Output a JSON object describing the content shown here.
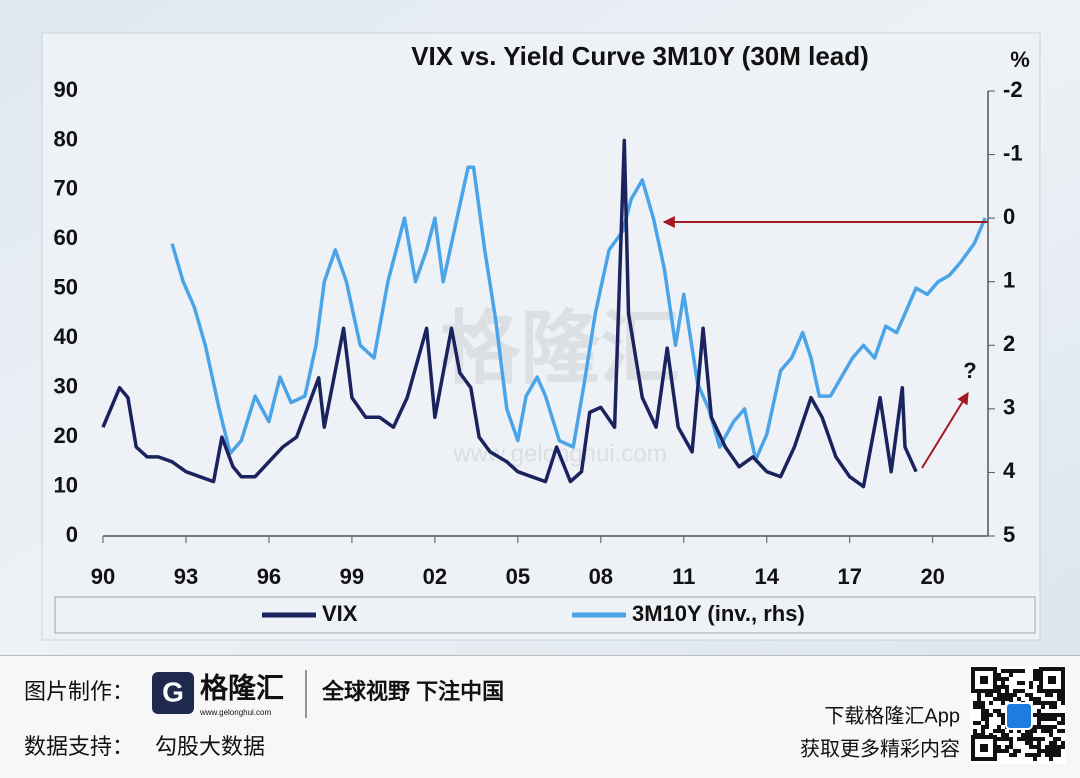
{
  "chart_data": {
    "type": "line",
    "title": "VIX vs. Yield Curve 3M10Y (30M lead)",
    "y2_label": "%",
    "xlim": [
      1990,
      2022
    ],
    "xticks": [
      {
        "value": 1990,
        "label": "90"
      },
      {
        "value": 1993,
        "label": "93"
      },
      {
        "value": 1996,
        "label": "96"
      },
      {
        "value": 1999,
        "label": "99"
      },
      {
        "value": 2002,
        "label": "02"
      },
      {
        "value": 2005,
        "label": "05"
      },
      {
        "value": 2008,
        "label": "08"
      },
      {
        "value": 2011,
        "label": "11"
      },
      {
        "value": 2014,
        "label": "14"
      },
      {
        "value": 2017,
        "label": "17"
      },
      {
        "value": 2020,
        "label": "20"
      }
    ],
    "ylim": [
      0,
      90
    ],
    "yticks": [
      0,
      10,
      20,
      30,
      40,
      50,
      60,
      70,
      80,
      90
    ],
    "y2lim": [
      5,
      -2
    ],
    "y2ticks": [
      5,
      4,
      3,
      2,
      1,
      0,
      -1,
      -2
    ],
    "annotations": [
      "?"
    ],
    "legend": "bottom",
    "series": [
      {
        "name": "VIX",
        "color": "#1b235e",
        "x": [
          1990.0,
          1990.6,
          1990.9,
          1991.2,
          1991.6,
          1992.0,
          1992.5,
          1993.0,
          1993.5,
          1994.0,
          1994.3,
          1994.7,
          1995.0,
          1995.5,
          1996.0,
          1996.5,
          1997.0,
          1997.8,
          1998.0,
          1998.7,
          1999.0,
          1999.5,
          2000.0,
          2000.5,
          2001.0,
          2001.7,
          2002.0,
          2002.6,
          2002.9,
          2003.3,
          2003.6,
          2004.0,
          2004.6,
          2005.0,
          2005.5,
          2006.0,
          2006.4,
          2006.9,
          2007.3,
          2007.6,
          2008.0,
          2008.5,
          2008.85,
          2009.0,
          2009.5,
          2010.0,
          2010.4,
          2010.8,
          2011.3,
          2011.7,
          2012.0,
          2012.5,
          2013.0,
          2013.5,
          2014.0,
          2014.5,
          2015.0,
          2015.6,
          2016.0,
          2016.5,
          2017.0,
          2017.5,
          2018.1,
          2018.5,
          2018.9,
          2019.0,
          2019.4
        ],
        "values": [
          22,
          30,
          28,
          18,
          16,
          16,
          15,
          13,
          12,
          11,
          20,
          14,
          12,
          12,
          15,
          18,
          20,
          32,
          22,
          42,
          28,
          24,
          24,
          22,
          28,
          42,
          24,
          42,
          33,
          30,
          20,
          17,
          15,
          13,
          12,
          11,
          18,
          11,
          13,
          25,
          26,
          22,
          80,
          45,
          28,
          22,
          38,
          22,
          17,
          42,
          24,
          18,
          14,
          16,
          13,
          12,
          18,
          28,
          24,
          16,
          12,
          10,
          28,
          13,
          30,
          18,
          13
        ]
      },
      {
        "name": "3M10Y (inv., rhs)",
        "color": "#4ba4e8",
        "axis": "y2",
        "x": [
          1992.5,
          1992.9,
          1993.3,
          1993.7,
          1994.2,
          1994.6,
          1995.0,
          1995.5,
          1996.0,
          1996.4,
          1996.8,
          1997.3,
          1997.7,
          1998.0,
          1998.4,
          1998.8,
          1999.3,
          1999.8,
          2000.3,
          2000.6,
          2000.9,
          2001.3,
          2001.7,
          2002.0,
          2002.3,
          2002.8,
          2003.2,
          2003.4,
          2003.8,
          2004.2,
          2004.6,
          2005.0,
          2005.3,
          2005.7,
          2006.0,
          2006.5,
          2007.0,
          2007.4,
          2007.8,
          2008.3,
          2008.8,
          2009.1,
          2009.5,
          2009.9,
          2010.3,
          2010.7,
          2011.0,
          2011.5,
          2011.9,
          2012.3,
          2012.8,
          2013.2,
          2013.6,
          2014.0,
          2014.5,
          2014.9,
          2015.3,
          2015.6,
          2015.9,
          2016.3,
          2016.7,
          2017.1,
          2017.5,
          2017.9,
          2018.3,
          2018.7,
          2019.0,
          2019.4,
          2019.8,
          2020.2,
          2020.6,
          2021.0,
          2021.5,
          2021.9
        ],
        "values": [
          0.4,
          1.0,
          1.4,
          2.0,
          3.0,
          3.7,
          3.5,
          2.8,
          3.2,
          2.5,
          2.9,
          2.8,
          2.0,
          1.0,
          0.5,
          1.0,
          2.0,
          2.2,
          1.0,
          0.5,
          0.0,
          1.0,
          0.5,
          0.0,
          1.0,
          0.0,
          -0.8,
          -0.8,
          0.5,
          1.6,
          3.0,
          3.5,
          2.8,
          2.5,
          2.8,
          3.5,
          3.6,
          2.6,
          1.5,
          0.5,
          0.2,
          -0.3,
          -0.6,
          0.0,
          0.8,
          2.0,
          1.2,
          2.6,
          3.0,
          3.6,
          3.2,
          3.0,
          3.8,
          3.4,
          2.4,
          2.2,
          1.8,
          2.2,
          2.8,
          2.8,
          2.5,
          2.2,
          2.0,
          2.2,
          1.7,
          1.8,
          1.5,
          1.1,
          1.2,
          1.0,
          0.9,
          0.7,
          0.4,
          0.0
        ]
      }
    ]
  },
  "watermark": {
    "logo": "格隆汇",
    "url": "www.gelonghui.com"
  },
  "footer": {
    "made_by": "图片制作：",
    "brand": "格隆汇",
    "brand_url": "www.gelonghui.com",
    "slogan": "全球视野 下注中国",
    "data_support": "数据支持：",
    "data_provider": "勾股大数据",
    "app_line1": "下载格隆汇App",
    "app_line2": "获取更多精彩内容"
  }
}
